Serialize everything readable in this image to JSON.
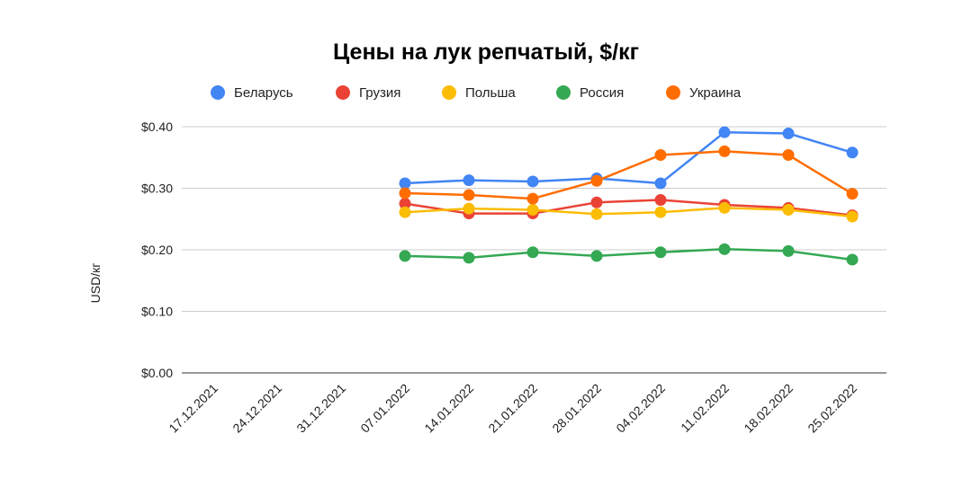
{
  "chart_data": {
    "type": "line",
    "title": "Цены на лук репчатый, $/кг",
    "xlabel": "",
    "ylabel": "USD/кг",
    "ylim": [
      0,
      0.4
    ],
    "yticks": [
      "$0.40",
      "$0.30",
      "$0.20",
      "$0.10",
      "$0.00"
    ],
    "ytick_values": [
      0.4,
      0.3,
      0.2,
      0.1,
      0.0
    ],
    "grid": true,
    "legend_position": "top",
    "x": [
      "17.12.2021",
      "24.12.2021",
      "31.12.2021",
      "07.01.2022",
      "14.01.2022",
      "21.01.2022",
      "28.01.2022",
      "04.02.2022",
      "11.02.2022",
      "18.02.2022",
      "25.02.2022"
    ],
    "series": [
      {
        "name": "Беларусь",
        "color": "#4285f4",
        "values": [
          null,
          null,
          null,
          0.308,
          0.313,
          0.311,
          0.316,
          0.308,
          0.391,
          0.389,
          0.358
        ]
      },
      {
        "name": "Грузия",
        "color": "#ea4335",
        "values": [
          null,
          null,
          null,
          0.275,
          0.259,
          0.259,
          0.277,
          0.281,
          0.273,
          0.268,
          0.256
        ]
      },
      {
        "name": "Польша",
        "color": "#fbbc04",
        "values": [
          null,
          null,
          null,
          0.261,
          0.267,
          0.265,
          0.258,
          0.261,
          0.268,
          0.265,
          0.254
        ]
      },
      {
        "name": "Россия",
        "color": "#34a853",
        "values": [
          null,
          null,
          null,
          0.19,
          0.187,
          0.196,
          0.19,
          0.196,
          0.201,
          0.198,
          0.184
        ]
      },
      {
        "name": "Украина",
        "color": "#ff6d01",
        "values": [
          null,
          null,
          null,
          0.292,
          0.289,
          0.283,
          0.312,
          0.354,
          0.36,
          0.354,
          0.291
        ]
      }
    ]
  }
}
